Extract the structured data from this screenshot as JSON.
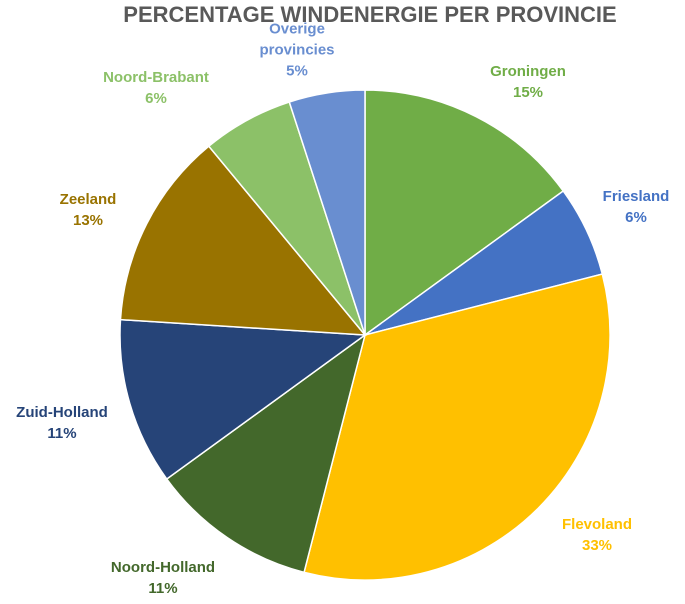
{
  "chart_data": {
    "type": "pie",
    "title": "PERCENTAGE WINDENERGIE PER PROVINCIE",
    "categories": [
      "Groningen",
      "Friesland",
      "Flevoland",
      "Noord-Holland",
      "Zuid-Holland",
      "Zeeland",
      "Noord-Brabant",
      "Overige provincies"
    ],
    "values": [
      15,
      6,
      33,
      11,
      11,
      13,
      6,
      5
    ],
    "value_labels": [
      "15%",
      "6%",
      "33%",
      "11%",
      "11%",
      "13%",
      "6%",
      "5%"
    ],
    "colors": [
      "#70ad47",
      "#4472c4",
      "#ffc000",
      "#43682b",
      "#264478",
      "#997300",
      "#8cc168",
      "#698ed0"
    ]
  }
}
